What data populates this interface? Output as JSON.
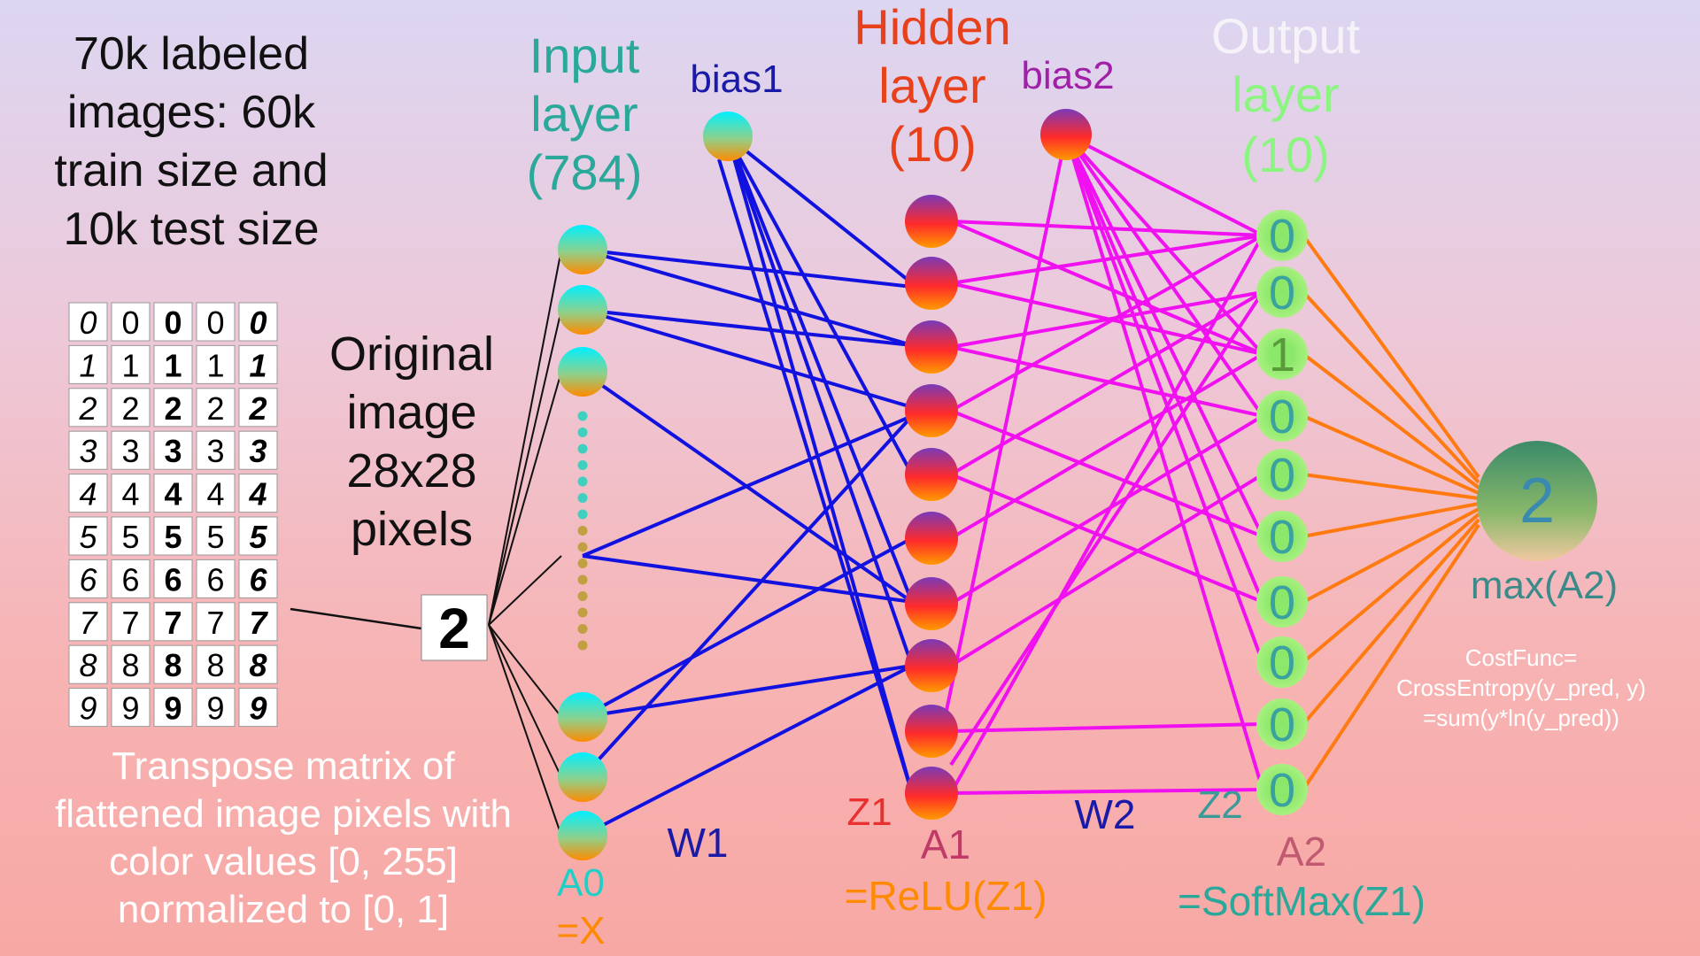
{
  "intro_lines": [
    "70k labeled",
    "images: 60k",
    "train size and",
    "10k test size"
  ],
  "original_lines": [
    "Original",
    "image",
    "28x28",
    "pixels"
  ],
  "transpose_lines": [
    "Transpose matrix of",
    "flattened image pixels with",
    "color values [0, 255]",
    "normalized to [0, 1]"
  ],
  "input_layer": {
    "lines": [
      "Input",
      "layer",
      "(784)"
    ],
    "var": "A0",
    "eq": "=X"
  },
  "hidden_layer": {
    "lines": [
      "Hidden",
      "layer",
      "(10)"
    ],
    "z": "Z1",
    "a": "A1",
    "eq": "=ReLU(Z1)"
  },
  "output_layer": {
    "lines": [
      "Output",
      "layer",
      "(10)"
    ],
    "z": "Z2",
    "a": "A2",
    "eq": "=SoftMax(Z1)",
    "values": [
      "0",
      "0",
      "1",
      "0",
      "0",
      "0",
      "0",
      "0",
      "0",
      "0"
    ]
  },
  "bias1": "bias1",
  "bias2": "bias2",
  "w1": "W1",
  "w2": "W2",
  "result": {
    "digit": "2",
    "label": "max(A2)"
  },
  "cost_lines": [
    "CostFunc=",
    "CrossEntropy(y_pred, y)",
    "=sum(y*ln(y_pred))"
  ],
  "sample_digits": [
    "0",
    "1",
    "2",
    "3",
    "4",
    "5",
    "6",
    "7",
    "8",
    "9"
  ],
  "input_digit": "2",
  "colors": {
    "input_title": "#2aa89a",
    "hidden_title": "#e8401a",
    "output_title": "#8cf582",
    "bias1": "#1a1aa8",
    "bias2": "#a020a8",
    "w1_lines": "#1212e0",
    "w2_lines": "#f010f0",
    "out_lines": "#ff7a10"
  }
}
